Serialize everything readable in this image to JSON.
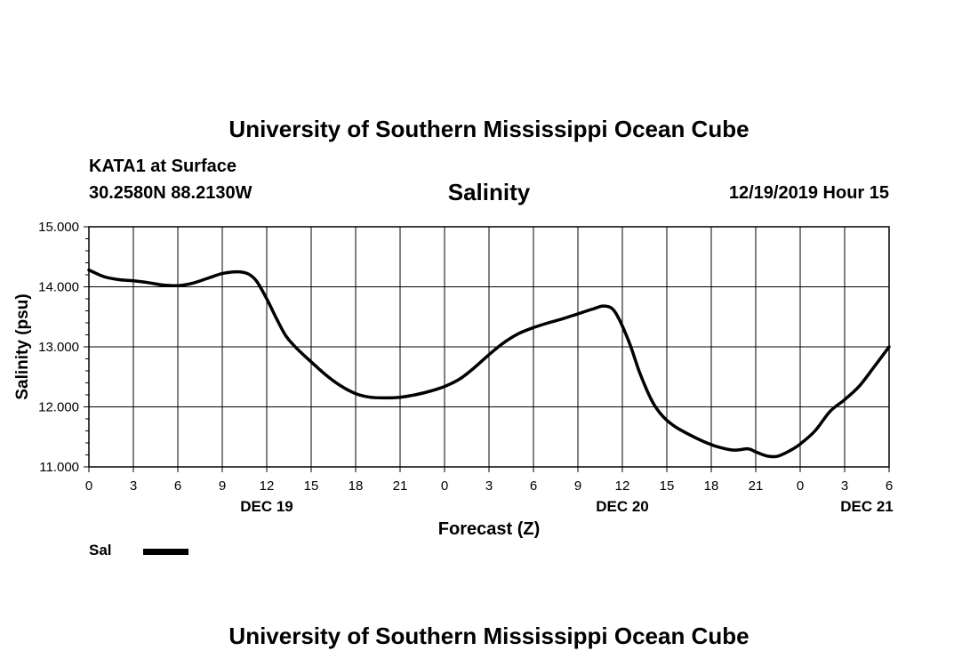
{
  "header": {
    "title": "University of Southern Mississippi Ocean Cube",
    "station": "KATA1 at Surface",
    "coords": "30.2580N 88.2130W",
    "date": "12/19/2019 Hour 15"
  },
  "footer": {
    "title": "University of Southern Mississippi Ocean Cube"
  },
  "legend": {
    "label": "Sal",
    "color": "#000000"
  },
  "chart_data": {
    "type": "line",
    "title": "Salinity",
    "xlabel": "Forecast (Z)",
    "ylabel": "Salinity (psu)",
    "x_unit": "forecast hour",
    "xlim": [
      0,
      54
    ],
    "ylim": [
      11,
      15
    ],
    "grid": true,
    "legend_position": "bottom-left",
    "x_ticks": [
      {
        "x": 0,
        "label": "0"
      },
      {
        "x": 3,
        "label": "3"
      },
      {
        "x": 6,
        "label": "6"
      },
      {
        "x": 9,
        "label": "9"
      },
      {
        "x": 12,
        "label": "12"
      },
      {
        "x": 15,
        "label": "15"
      },
      {
        "x": 18,
        "label": "18"
      },
      {
        "x": 21,
        "label": "21"
      },
      {
        "x": 24,
        "label": "0"
      },
      {
        "x": 27,
        "label": "3"
      },
      {
        "x": 30,
        "label": "6"
      },
      {
        "x": 33,
        "label": "9"
      },
      {
        "x": 36,
        "label": "12"
      },
      {
        "x": 39,
        "label": "15"
      },
      {
        "x": 42,
        "label": "18"
      },
      {
        "x": 45,
        "label": "21"
      },
      {
        "x": 48,
        "label": "0"
      },
      {
        "x": 51,
        "label": "3"
      },
      {
        "x": 54,
        "label": "6"
      }
    ],
    "day_labels": [
      {
        "x": 12,
        "label": "DEC 19"
      },
      {
        "x": 36,
        "label": "DEC 20"
      },
      {
        "x": 52.5,
        "label": "DEC 21"
      }
    ],
    "y_ticks": [
      {
        "y": 11,
        "label": "11.000"
      },
      {
        "y": 12,
        "label": "12.000"
      },
      {
        "y": 13,
        "label": "13.000"
      },
      {
        "y": 14,
        "label": "14.000"
      },
      {
        "y": 15,
        "label": "15.000"
      }
    ],
    "series": [
      {
        "name": "Sal",
        "color": "#000000",
        "points": [
          [
            0,
            14.28
          ],
          [
            1,
            14.17
          ],
          [
            2,
            14.12
          ],
          [
            3,
            14.1
          ],
          [
            4,
            14.07
          ],
          [
            5,
            14.03
          ],
          [
            6,
            14.02
          ],
          [
            7,
            14.06
          ],
          [
            8,
            14.14
          ],
          [
            9,
            14.22
          ],
          [
            10,
            14.25
          ],
          [
            10.7,
            14.22
          ],
          [
            11.3,
            14.1
          ],
          [
            12,
            13.8
          ],
          [
            12.7,
            13.45
          ],
          [
            13.3,
            13.18
          ],
          [
            14,
            12.98
          ],
          [
            15,
            12.75
          ],
          [
            16,
            12.53
          ],
          [
            17,
            12.35
          ],
          [
            18,
            12.22
          ],
          [
            19,
            12.16
          ],
          [
            20,
            12.15
          ],
          [
            21,
            12.16
          ],
          [
            22,
            12.2
          ],
          [
            23,
            12.26
          ],
          [
            24,
            12.34
          ],
          [
            25,
            12.46
          ],
          [
            26,
            12.65
          ],
          [
            27,
            12.87
          ],
          [
            28,
            13.07
          ],
          [
            29,
            13.22
          ],
          [
            30,
            13.32
          ],
          [
            31,
            13.4
          ],
          [
            32,
            13.47
          ],
          [
            33,
            13.55
          ],
          [
            34,
            13.63
          ],
          [
            34.7,
            13.68
          ],
          [
            35.3,
            13.64
          ],
          [
            35.8,
            13.45
          ],
          [
            36.5,
            13.05
          ],
          [
            37.2,
            12.55
          ],
          [
            38,
            12.1
          ],
          [
            38.7,
            11.85
          ],
          [
            39.5,
            11.68
          ],
          [
            40.5,
            11.54
          ],
          [
            41.5,
            11.42
          ],
          [
            42.5,
            11.33
          ],
          [
            43.5,
            11.28
          ],
          [
            44.5,
            11.3
          ],
          [
            45,
            11.25
          ],
          [
            45.8,
            11.18
          ],
          [
            46.5,
            11.18
          ],
          [
            47.3,
            11.27
          ],
          [
            48,
            11.38
          ],
          [
            49,
            11.6
          ],
          [
            50,
            11.92
          ],
          [
            51,
            12.12
          ],
          [
            52,
            12.35
          ],
          [
            53,
            12.67
          ],
          [
            54,
            13.0
          ]
        ]
      }
    ]
  }
}
